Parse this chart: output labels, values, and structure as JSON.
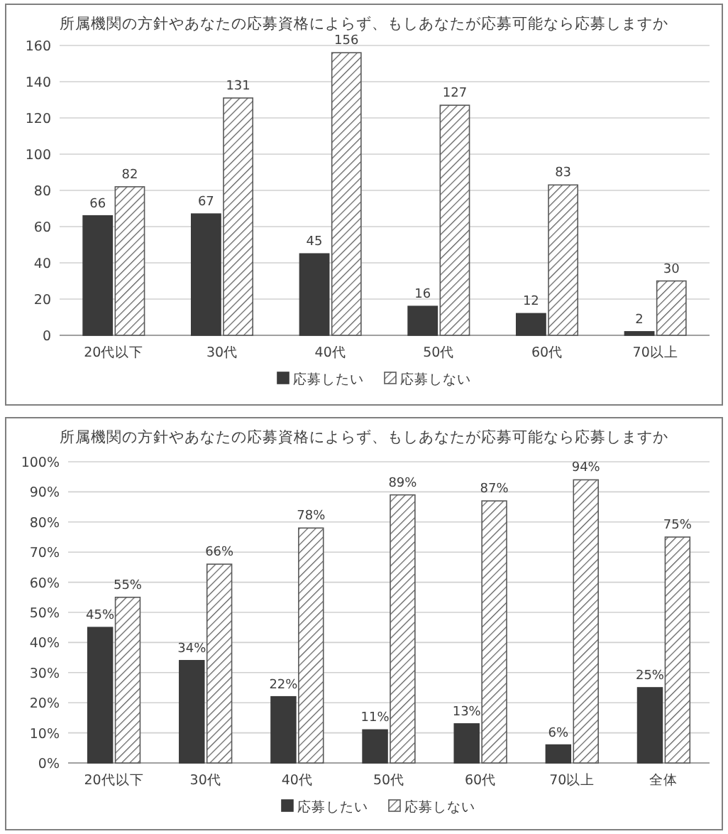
{
  "chart_data": [
    {
      "type": "bar",
      "title": "所属機関の方針やあなたの応募資格によらず、もしあなたが応募可能なら応募しますか",
      "categories": [
        "20代以下",
        "30代",
        "40代",
        "50代",
        "60代",
        "70以上"
      ],
      "series": [
        {
          "name": "応募したい",
          "color": "#3a3a3a",
          "values": [
            66,
            67,
            45,
            16,
            12,
            2
          ]
        },
        {
          "name": "応募しない",
          "color": "#595959",
          "values": [
            82,
            131,
            156,
            127,
            83,
            30
          ]
        }
      ],
      "ylim": [
        0,
        160
      ],
      "yticks": [
        0,
        20,
        40,
        60,
        80,
        100,
        120,
        140,
        160
      ],
      "grid": "y",
      "legend": "bottom",
      "data_labels": true
    },
    {
      "type": "bar",
      "title": "所属機関の方針やあなたの応募資格によらず、もしあなたが応募可能なら応募しますか",
      "categories": [
        "20代以下",
        "30代",
        "40代",
        "50代",
        "60代",
        "70以上",
        "全体"
      ],
      "series": [
        {
          "name": "応募したい",
          "color": "#3a3a3a",
          "values": [
            45,
            34,
            22,
            11,
            13,
            6,
            25
          ],
          "value_labels": [
            "45%",
            "34%",
            "22%",
            "11%",
            "13%",
            "6%",
            "25%"
          ]
        },
        {
          "name": "応募しない",
          "color": "#595959",
          "values": [
            55,
            66,
            78,
            89,
            87,
            94,
            75
          ],
          "value_labels": [
            "55%",
            "66%",
            "78%",
            "89%",
            "87%",
            "94%",
            "75%"
          ]
        }
      ],
      "ylim": [
        0,
        100
      ],
      "yticks": [
        {
          "value": 0,
          "label": "0%"
        },
        {
          "value": 10,
          "label": "10%"
        },
        {
          "value": 20,
          "label": "20%"
        },
        {
          "value": 30,
          "label": "30%"
        },
        {
          "value": 40,
          "label": "40%"
        },
        {
          "value": 50,
          "label": "50%"
        },
        {
          "value": 60,
          "label": "60%"
        },
        {
          "value": 70,
          "label": "70%"
        },
        {
          "value": 80,
          "label": "80%"
        },
        {
          "value": 90,
          "label": "90%"
        },
        {
          "value": 100,
          "label": "100%"
        }
      ],
      "grid": "y",
      "legend": "bottom"
    }
  ]
}
